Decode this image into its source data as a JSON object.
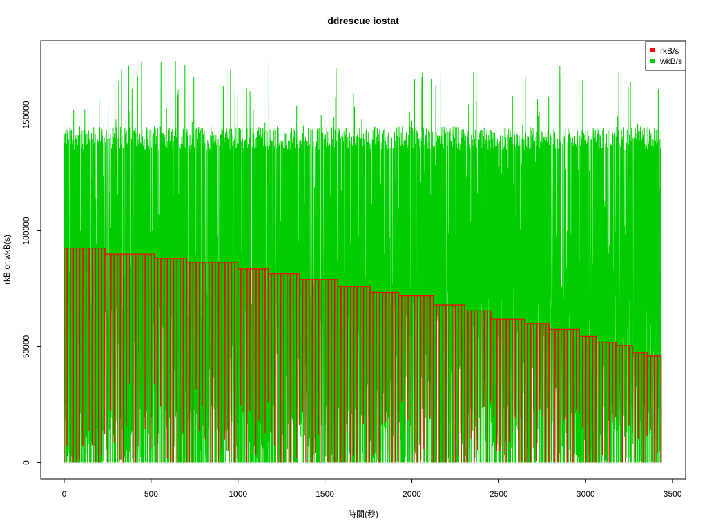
{
  "chart_data": {
    "type": "line",
    "title": "ddrescue iostat",
    "xlabel": "時間(秒)",
    "ylabel": "rkB or wkB(s)",
    "xlim": [
      -135,
      3575
    ],
    "ylim": [
      -7000,
      182000
    ],
    "x_ticks": [
      0,
      500,
      1000,
      1500,
      2000,
      2500,
      3000,
      3500
    ],
    "x_tick_labels": [
      "0",
      "500",
      "1000",
      "1500",
      "2000",
      "2500",
      "3000",
      "3500"
    ],
    "y_ticks": [
      0,
      50000,
      100000,
      150000
    ],
    "y_tick_labels": [
      "0",
      "50000",
      "100000",
      "150000"
    ],
    "legend": {
      "position": "top-right",
      "entries": [
        "rkB/s",
        "wkB/s"
      ]
    },
    "series": [
      {
        "name": "rkB/s",
        "color": "#ff0000",
        "description_steps": "stepwise plateau of read rate decreasing over time, with periodic drops toward zero",
        "steps": [
          {
            "x_start": 0,
            "x_end": 235,
            "value": 92500
          },
          {
            "x_start": 235,
            "x_end": 520,
            "value": 90000
          },
          {
            "x_start": 520,
            "x_end": 705,
            "value": 88000
          },
          {
            "x_start": 705,
            "x_end": 1000,
            "value": 86500
          },
          {
            "x_start": 1000,
            "x_end": 1175,
            "value": 83500
          },
          {
            "x_start": 1175,
            "x_end": 1355,
            "value": 81500
          },
          {
            "x_start": 1355,
            "x_end": 1575,
            "value": 79000
          },
          {
            "x_start": 1575,
            "x_end": 1760,
            "value": 76000
          },
          {
            "x_start": 1760,
            "x_end": 1925,
            "value": 73500
          },
          {
            "x_start": 1925,
            "x_end": 2125,
            "value": 72000
          },
          {
            "x_start": 2125,
            "x_end": 2305,
            "value": 68000
          },
          {
            "x_start": 2305,
            "x_end": 2455,
            "value": 65500
          },
          {
            "x_start": 2455,
            "x_end": 2650,
            "value": 62000
          },
          {
            "x_start": 2650,
            "x_end": 2790,
            "value": 60000
          },
          {
            "x_start": 2790,
            "x_end": 2965,
            "value": 57500
          },
          {
            "x_start": 2965,
            "x_end": 3060,
            "value": 54500
          },
          {
            "x_start": 3060,
            "x_end": 3175,
            "value": 52000
          },
          {
            "x_start": 3175,
            "x_end": 3270,
            "value": 50500
          },
          {
            "x_start": 3270,
            "x_end": 3355,
            "value": 47500
          },
          {
            "x_start": 3355,
            "x_end": 3435,
            "value": 46000
          }
        ]
      },
      {
        "name": "wkB/s",
        "color": "#00cd00",
        "x_range": [
          0,
          3435
        ],
        "value_range": [
          0,
          174000
        ],
        "typical_upper_band": [
          135000,
          145000
        ],
        "typical_lower_band": [
          0,
          25000
        ],
        "note": "dense oscillating write rate between ~0 and ~140000, peaks up to ~174000"
      }
    ]
  }
}
